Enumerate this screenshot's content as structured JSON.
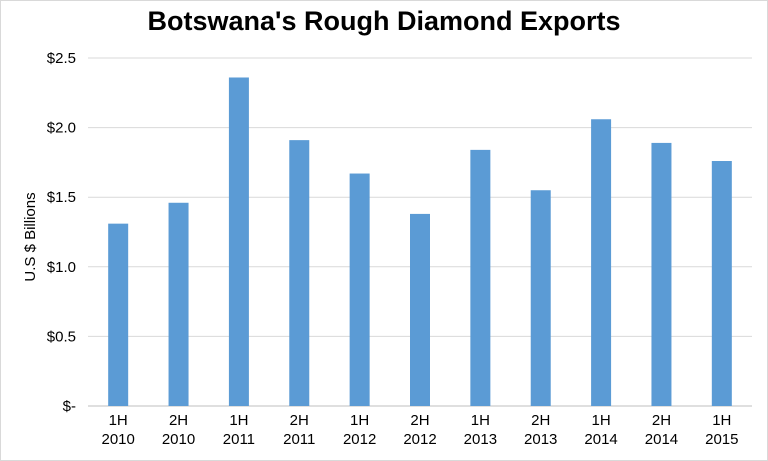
{
  "chart_data": {
    "type": "bar",
    "title": "Botswana's Rough Diamond Exports",
    "xlabel": "",
    "ylabel": "U.S $ Billions",
    "ylim": [
      0,
      2.5
    ],
    "yticks": [
      {
        "value": 0,
        "label": "$-"
      },
      {
        "value": 0.5,
        "label": "$0.5"
      },
      {
        "value": 1.0,
        "label": "$1.0"
      },
      {
        "value": 1.5,
        "label": "$1.5"
      },
      {
        "value": 2.0,
        "label": "$2.0"
      },
      {
        "value": 2.5,
        "label": "$2.5"
      }
    ],
    "grid": true,
    "legend": "none",
    "bar_color": "#5b9bd5",
    "categories": [
      [
        "1H",
        "2010"
      ],
      [
        "2H",
        "2010"
      ],
      [
        "1H",
        "2011"
      ],
      [
        "2H",
        "2011"
      ],
      [
        "1H",
        "2012"
      ],
      [
        "2H",
        "2012"
      ],
      [
        "1H",
        "2013"
      ],
      [
        "2H",
        "2013"
      ],
      [
        "1H",
        "2014"
      ],
      [
        "2H",
        "2014"
      ],
      [
        "1H",
        "2015"
      ]
    ],
    "values": [
      1.31,
      1.46,
      2.36,
      1.91,
      1.67,
      1.38,
      1.84,
      1.55,
      2.06,
      1.89,
      1.76
    ]
  }
}
